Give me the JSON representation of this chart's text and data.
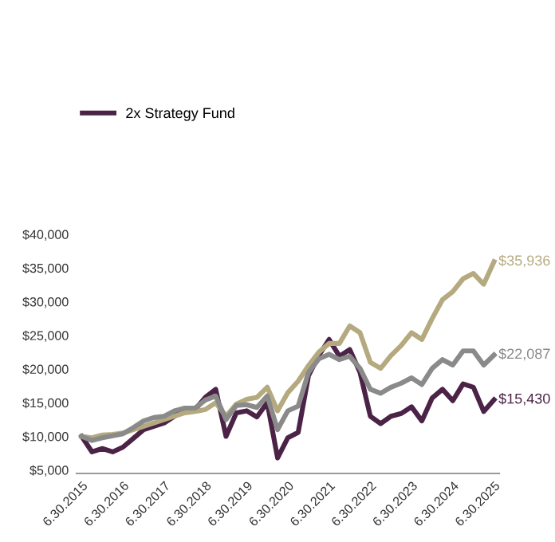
{
  "chart_data": {
    "type": "line",
    "categories": [
      "6.30.2015",
      null,
      null,
      null,
      "6.30.2016",
      null,
      null,
      null,
      "6.30.2017",
      null,
      null,
      null,
      "6.30.2018",
      null,
      null,
      null,
      "6.30.2019",
      null,
      null,
      null,
      "6.30.2020",
      null,
      null,
      null,
      "6.30.2021",
      null,
      null,
      null,
      "6.30.2022",
      null,
      null,
      null,
      "6.30.2023",
      null,
      null,
      null,
      "6.30.2024",
      null,
      null,
      null,
      "6.30.2025"
    ],
    "series": [
      {
        "name": "2x Strategy Fund",
        "color": "#4b2346",
        "values": [
          10000,
          7700,
          8200,
          7700,
          8400,
          9700,
          11000,
          11500,
          12000,
          13000,
          14000,
          14000,
          15800,
          17000,
          10000,
          13500,
          13800,
          12900,
          15000,
          6800,
          9800,
          10600,
          19000,
          22000,
          24400,
          21900,
          22900,
          19500,
          13000,
          11900,
          13000,
          13400,
          14400,
          12300,
          15700,
          17000,
          15300,
          17800,
          17300,
          13700,
          15430
        ],
        "value_labels": [
          null,
          null,
          null,
          null,
          null,
          null,
          null,
          null,
          null,
          null,
          null,
          null,
          null,
          null,
          null,
          null,
          null,
          null,
          null,
          null,
          null,
          null,
          null,
          null,
          null,
          null,
          null,
          null,
          null,
          null,
          null,
          null,
          null,
          null,
          null,
          null,
          null,
          null,
          null,
          null,
          "$15,430"
        ]
      },
      {
        "color": "#b5aa7f",
        "values": [
          10000,
          9800,
          10200,
          10300,
          10500,
          11000,
          11500,
          12000,
          12500,
          13000,
          13500,
          13700,
          14000,
          15000,
          13000,
          14800,
          15500,
          15800,
          17300,
          13800,
          16500,
          18200,
          20500,
          22500,
          23800,
          23800,
          26400,
          25400,
          21000,
          20100,
          22000,
          23500,
          25400,
          24400,
          27500,
          30300,
          31500,
          33400,
          34200,
          32600,
          35936
        ],
        "value_labels": [
          null,
          null,
          null,
          null,
          null,
          null,
          null,
          null,
          null,
          null,
          null,
          null,
          null,
          null,
          null,
          null,
          null,
          null,
          null,
          null,
          null,
          null,
          null,
          null,
          null,
          null,
          null,
          null,
          null,
          null,
          null,
          null,
          null,
          null,
          null,
          null,
          null,
          null,
          null,
          null,
          "$35,936"
        ]
      },
      {
        "color": "#8a8a8a",
        "values": [
          10000,
          9400,
          9800,
          10100,
          10400,
          11300,
          12300,
          12800,
          13000,
          13800,
          14200,
          14200,
          15400,
          16000,
          12500,
          14600,
          14700,
          14300,
          16000,
          11000,
          13800,
          14500,
          19500,
          21500,
          22200,
          21400,
          21900,
          20100,
          17000,
          16400,
          17300,
          17900,
          18700,
          17700,
          20100,
          21400,
          20600,
          22700,
          22700,
          20600,
          22087
        ],
        "value_labels": [
          null,
          null,
          null,
          null,
          null,
          null,
          null,
          null,
          null,
          null,
          null,
          null,
          null,
          null,
          null,
          null,
          null,
          null,
          null,
          null,
          null,
          null,
          null,
          null,
          null,
          null,
          null,
          null,
          null,
          null,
          null,
          null,
          null,
          null,
          null,
          null,
          null,
          null,
          null,
          null,
          "$22,087"
        ]
      }
    ],
    "ylim": [
      4500,
      40000
    ],
    "yticks": [
      {
        "value": 5000,
        "label": "$5,000"
      },
      {
        "value": 10000,
        "label": "$10,000"
      },
      {
        "value": 15000,
        "label": "$15,000"
      },
      {
        "value": 20000,
        "label": "$20,000"
      },
      {
        "value": 25000,
        "label": "$25,000"
      },
      {
        "value": 30000,
        "label": "$30,000"
      },
      {
        "value": 35000,
        "label": "$35,000"
      },
      {
        "value": 40000,
        "label": "$40,000"
      }
    ],
    "grid": false,
    "legend": "top left",
    "marker": "none",
    "line_style": "solid"
  }
}
